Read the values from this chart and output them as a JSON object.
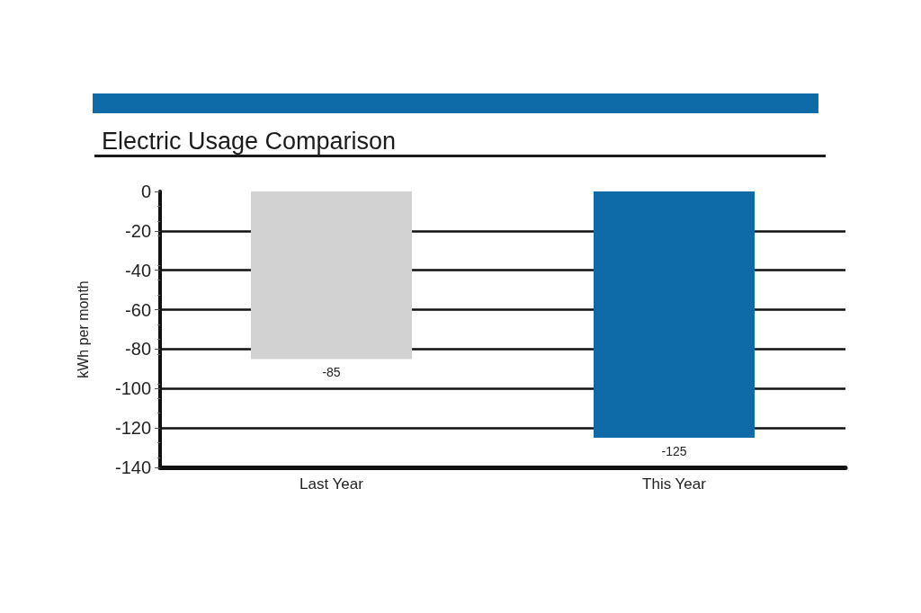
{
  "chart_data": {
    "type": "bar",
    "title": "Electric Usage Comparison",
    "ylabel": "kWh per month",
    "categories": [
      "Last Year",
      "This Year"
    ],
    "values": [
      -85,
      -125
    ],
    "colors": [
      "#d2d2d2",
      "#0f6aa8"
    ],
    "ylim": [
      -140,
      0
    ],
    "yticks": [
      -140,
      -120,
      -100,
      -80,
      -60,
      -40,
      -20,
      0
    ],
    "grid": "y",
    "data_labels": true
  }
}
